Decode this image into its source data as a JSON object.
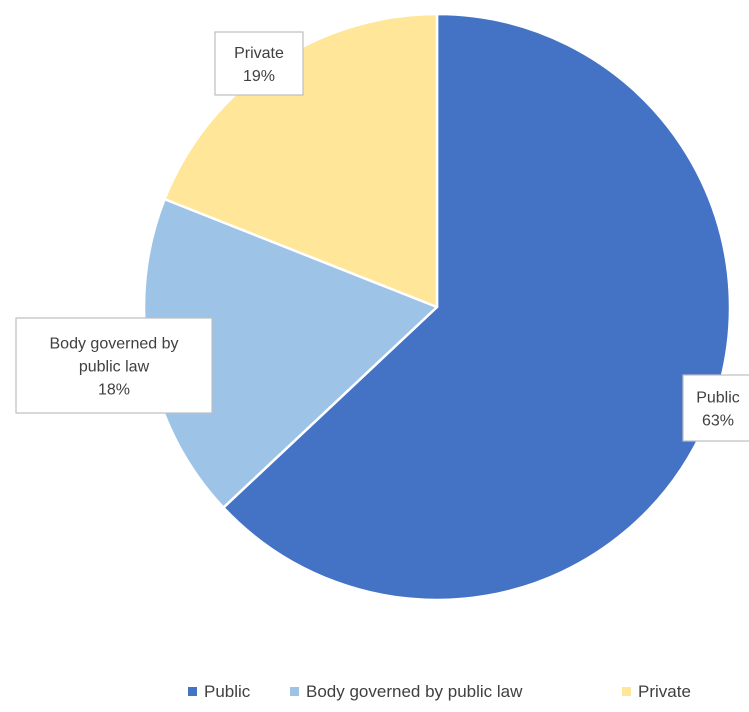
{
  "chart_data": {
    "type": "pie",
    "title": "",
    "slices": [
      {
        "label_lines": [
          "Public"
        ],
        "name": "Public",
        "value": 63,
        "value_text": "63%",
        "color": "#4472c4"
      },
      {
        "label_lines": [
          "Body governed by",
          "public law"
        ],
        "name": "Body governed by public law",
        "value": 18,
        "value_text": "18%",
        "color": "#9dc3e6"
      },
      {
        "label_lines": [
          "Private"
        ],
        "name": "Private",
        "value": 19,
        "value_text": "19%",
        "color": "#ffe699"
      }
    ],
    "start_angle": "12 o'clock",
    "direction": "clockwise",
    "legend": {
      "position": "bottom",
      "items": [
        "Public",
        "Body governed by public law",
        "Private"
      ]
    }
  }
}
